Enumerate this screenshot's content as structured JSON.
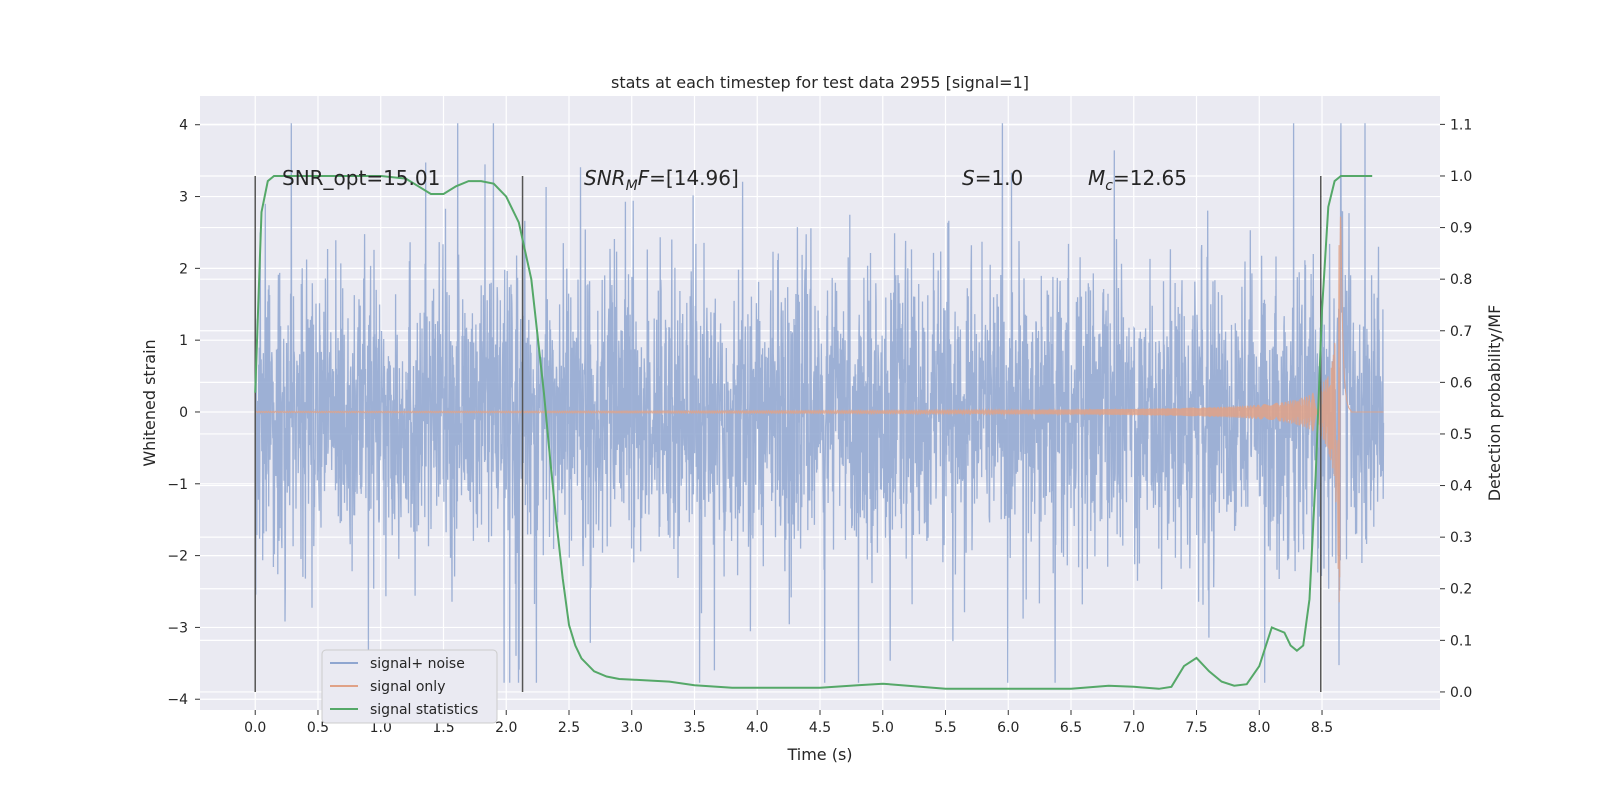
{
  "chart_data": {
    "type": "line",
    "title": "stats at each timestep for test data 2955 [signal=1]",
    "xlabel": "Time (s)",
    "ylabel": "Whitened strain",
    "ylabel_right": "Detection probability/MF",
    "xlim": [
      -0.44,
      9.44
    ],
    "ylim": [
      -4.15,
      4.4
    ],
    "ylim_right": [
      -0.035,
      1.155
    ],
    "xticks": [
      "0.0",
      "0.5",
      "1.0",
      "1.5",
      "2.0",
      "2.5",
      "3.0",
      "3.5",
      "4.0",
      "4.5",
      "5.0",
      "5.5",
      "6.0",
      "6.5",
      "7.0",
      "7.5",
      "8.0",
      "8.5"
    ],
    "yticks": [
      "4",
      "3",
      "2",
      "1",
      "0",
      "−1",
      "−2",
      "−3",
      "−4"
    ],
    "yticks_right": [
      "1.1",
      "1.0",
      "0.9",
      "0.8",
      "0.7",
      "0.6",
      "0.5",
      "0.4",
      "0.3",
      "0.2",
      "0.1",
      "0.0"
    ],
    "grid": true,
    "legend_position": "lower-left",
    "colors": {
      "background": "#eaeaf2",
      "grid": "#ffffff",
      "noise": "#8fa6d0",
      "signal": "#e0a287",
      "stats": "#55a868",
      "vlines": "#555555"
    },
    "annotations": [
      {
        "label": "SNR_opt=15.01"
      },
      {
        "label": "SNR_MF=[14.96]"
      },
      {
        "label": "S=1.0"
      },
      {
        "label": "M_c=12.65"
      }
    ],
    "vertical_lines_x": [
      0.0,
      2.13,
      8.49
    ],
    "series": [
      {
        "name": "signal+ noise",
        "axis": "left",
        "description_values": {
          "t_start": 0.0,
          "t_end": 8.99,
          "envelope_typical": 1.4,
          "peak_max": 4.02,
          "peak_min": -3.77
        }
      },
      {
        "name": "signal only",
        "axis": "left",
        "description_values": {
          "t_start": 0.0,
          "t_end": 8.99,
          "merger_time": 8.65,
          "peak_amplitude": 2.9
        }
      },
      {
        "name": "signal statistics",
        "axis": "right",
        "x": [
          0.0,
          0.05,
          0.1,
          0.15,
          0.2,
          0.3,
          0.5,
          0.8,
          1.0,
          1.2,
          1.3,
          1.4,
          1.5,
          1.6,
          1.7,
          1.8,
          1.9,
          2.0,
          2.1,
          2.2,
          2.3,
          2.35,
          2.4,
          2.45,
          2.5,
          2.55,
          2.6,
          2.7,
          2.8,
          2.9,
          3.0,
          3.3,
          3.5,
          3.8,
          4.0,
          4.2,
          4.5,
          4.8,
          5.0,
          5.3,
          5.5,
          6.0,
          6.5,
          6.8,
          7.0,
          7.2,
          7.3,
          7.4,
          7.5,
          7.6,
          7.7,
          7.8,
          7.9,
          8.0,
          8.1,
          8.2,
          8.25,
          8.3,
          8.35,
          8.4,
          8.45,
          8.5,
          8.55,
          8.6,
          8.65,
          8.7,
          8.8,
          8.9
        ],
        "y": [
          0.58,
          0.93,
          0.99,
          1.0,
          1.0,
          1.0,
          1.0,
          1.0,
          1.0,
          0.995,
          0.98,
          0.965,
          0.965,
          0.98,
          0.99,
          0.99,
          0.985,
          0.96,
          0.91,
          0.8,
          0.58,
          0.45,
          0.33,
          0.22,
          0.13,
          0.09,
          0.065,
          0.04,
          0.03,
          0.025,
          0.024,
          0.02,
          0.013,
          0.008,
          0.008,
          0.008,
          0.008,
          0.013,
          0.016,
          0.01,
          0.006,
          0.006,
          0.006,
          0.012,
          0.01,
          0.006,
          0.01,
          0.05,
          0.066,
          0.04,
          0.02,
          0.012,
          0.015,
          0.05,
          0.125,
          0.115,
          0.09,
          0.08,
          0.09,
          0.18,
          0.42,
          0.74,
          0.94,
          0.99,
          1.0,
          1.0,
          1.0,
          1.0
        ]
      }
    ]
  }
}
